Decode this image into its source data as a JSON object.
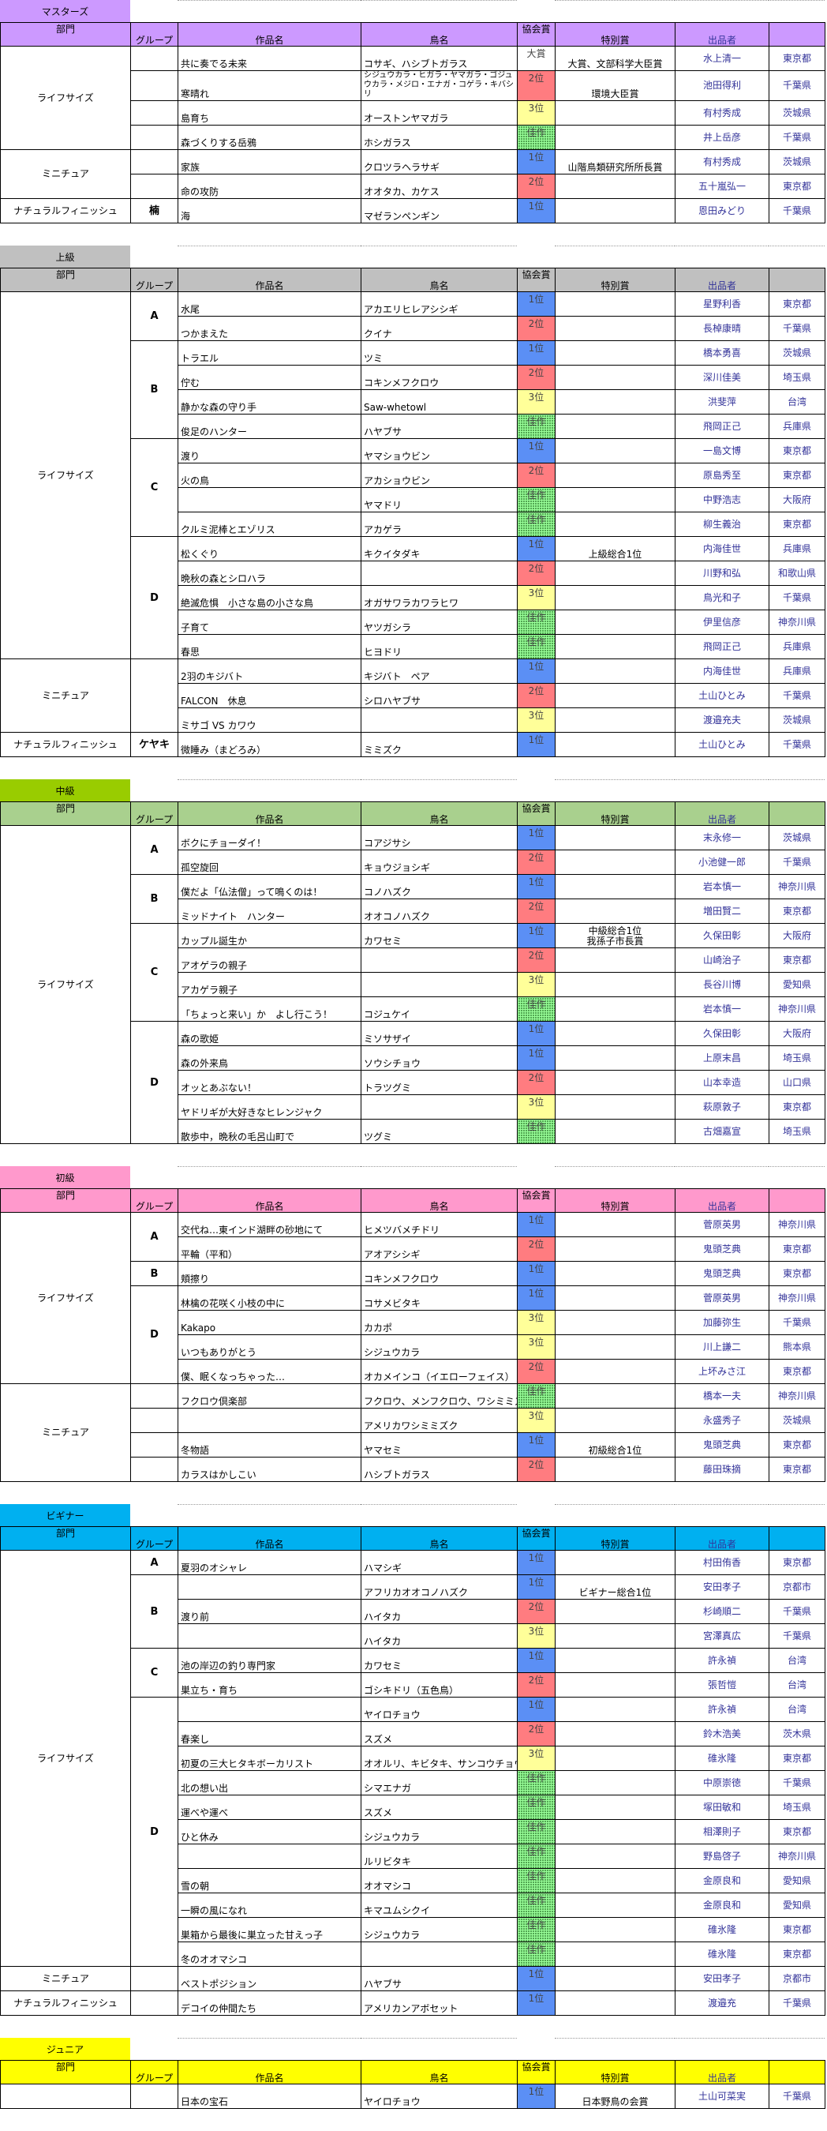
{
  "header": {
    "dept": "部門",
    "group": "グループ",
    "title": "作品名",
    "bird": "鳥名",
    "award": "協会賞",
    "special": "特別賞",
    "entrant": "出品者",
    "pref": ""
  },
  "award_colors": {
    "大賞": "#FFFFFF",
    "1位": "#5B8FF5",
    "2位": "#FF7C80",
    "3位": "#FFFF99",
    "佳作": "#99FF99"
  },
  "sections": [
    {
      "name": "マスターズ",
      "color": "#CC99FF",
      "header_color": "#CC99FF",
      "departments": [
        {
          "name": "ライフサイズ",
          "groups": [
            {
              "label": "",
              "rows": [
                [
                  "共に奏でる未来",
                  "コサギ、ハシブトガラス",
                  "大賞",
                  "大賞、文部科学大臣賞",
                  "水上清一",
                  "東京都"
                ]
              ]
            },
            {
              "label": "",
              "rows": [
                [
                  "寒晴れ",
                  "シジュウカラ・ヒガラ・ヤマガラ・ゴジュウカラ・メジロ・エナガ・コゲラ・キバシリ",
                  "2位",
                  "環境大臣賞",
                  "池田得利",
                  "千葉県"
                ]
              ]
            },
            {
              "label": "",
              "rows": [
                [
                  "島育ち",
                  "オーストンヤマガラ",
                  "3位",
                  "",
                  "有村秀成",
                  "茨城県"
                ]
              ]
            },
            {
              "label": "",
              "rows": [
                [
                  "森づくりする岳鴉",
                  "ホシガラス",
                  "佳作",
                  "",
                  "井上岳彦",
                  "千葉県"
                ]
              ]
            }
          ]
        },
        {
          "name": "ミニチュア",
          "groups": [
            {
              "label": "",
              "rows": [
                [
                  "家族",
                  "クロツラヘラサギ",
                  "1位",
                  "山階鳥類研究所所長賞",
                  "有村秀成",
                  "茨城県"
                ]
              ]
            },
            {
              "label": "",
              "rows": [
                [
                  "命の攻防",
                  "オオタカ、カケス",
                  "2位",
                  "",
                  "五十嵐弘一",
                  "東京都"
                ]
              ]
            }
          ]
        },
        {
          "name": "ナチュラルフィニッシュ",
          "groups": [
            {
              "label": "楠",
              "rows": [
                [
                  "海",
                  "マゼランペンギン",
                  "1位",
                  "",
                  "恩田みどり",
                  "千葉県"
                ]
              ]
            }
          ]
        }
      ]
    },
    {
      "name": "上級",
      "color": "#C0C0C0",
      "header_color": "#C0C0C0",
      "departments": [
        {
          "name": "ライフサイズ",
          "groups": [
            {
              "label": "A",
              "rows": [
                [
                  "水尾",
                  "アカエリヒレアシシギ",
                  "1位",
                  "",
                  "星野利香",
                  "東京都"
                ],
                [
                  "つかまえた",
                  "クイナ",
                  "2位",
                  "",
                  "長棹康晴",
                  "千葉県"
                ]
              ]
            },
            {
              "label": "B",
              "rows": [
                [
                  "トラエル",
                  "ツミ",
                  "1位",
                  "",
                  "橋本勇喜",
                  "茨城県"
                ],
                [
                  "佇む",
                  "コキンメフクロウ",
                  "2位",
                  "",
                  "深川佳美",
                  "埼玉県"
                ],
                [
                  "静かな森の守り手",
                  "Saw-whetowl",
                  "3位",
                  "",
                  "洪斐萍",
                  "台湾"
                ],
                [
                  "俊足のハンター",
                  "ハヤブサ",
                  "佳作",
                  "",
                  "飛岡正己",
                  "兵庫県"
                ]
              ]
            },
            {
              "label": "C",
              "rows": [
                [
                  "渡り",
                  "ヤマショウビン",
                  "1位",
                  "",
                  "一島文博",
                  "東京都"
                ],
                [
                  "火の鳥",
                  "アカショウビン",
                  "2位",
                  "",
                  "原島秀至",
                  "東京都"
                ],
                [
                  "",
                  "ヤマドリ",
                  "佳作",
                  "",
                  "中野浩志",
                  "大阪府"
                ],
                [
                  "クルミ泥棒とエゾリス",
                  "アカゲラ",
                  "佳作",
                  "",
                  "柳生義治",
                  "東京都"
                ]
              ]
            },
            {
              "label": "D",
              "rows": [
                [
                  "松くぐり",
                  "キクイタダキ",
                  "1位",
                  "上級総合1位",
                  "内海佳世",
                  "兵庫県"
                ],
                [
                  "晩秋の森とシロハラ",
                  "",
                  "2位",
                  "",
                  "川野和弘",
                  "和歌山県"
                ],
                [
                  "絶滅危惧　小さな島の小さな鳥",
                  "オガサワラカワラヒワ",
                  "3位",
                  "",
                  "鳥光和子",
                  "千葉県"
                ],
                [
                  "子育て",
                  "ヤツガシラ",
                  "佳作",
                  "",
                  "伊里信彦",
                  "神奈川県"
                ],
                [
                  "春思",
                  "ヒヨドリ",
                  "佳作",
                  "",
                  "飛岡正己",
                  "兵庫県"
                ]
              ]
            }
          ]
        },
        {
          "name": "ミニチュア",
          "groups": [
            {
              "label": "",
              "rows": [
                [
                  "2羽のキジバト",
                  "キジバト　ペア",
                  "1位",
                  "",
                  "内海佳世",
                  "兵庫県"
                ],
                [
                  "FALCON　休息",
                  "シロハヤブサ",
                  "2位",
                  "",
                  "土山ひとみ",
                  "千葉県"
                ],
                [
                  "ミサゴ VS カワウ",
                  "",
                  "3位",
                  "",
                  "渡邉充夫",
                  "茨城県"
                ]
              ]
            }
          ]
        },
        {
          "name": "ナチュラルフィニッシュ",
          "groups": [
            {
              "label": "ケヤキ",
              "rows": [
                [
                  "微睡み（まどろみ）",
                  "ミミズク",
                  "1位",
                  "",
                  "土山ひとみ",
                  "千葉県"
                ]
              ]
            }
          ]
        }
      ]
    },
    {
      "name": "中級",
      "color": "#99CC00",
      "header_color": "#A9D08E",
      "departments": [
        {
          "name": "ライフサイズ",
          "groups": [
            {
              "label": "A",
              "rows": [
                [
                  "ボクにチョーダイ！",
                  "コアジサシ",
                  "1位",
                  "",
                  "末永修一",
                  "茨城県"
                ],
                [
                  "孤空旋回",
                  "キョウジョシギ",
                  "2位",
                  "",
                  "小池健一郎",
                  "千葉県"
                ]
              ]
            },
            {
              "label": "B",
              "rows": [
                [
                  "僕だよ「仏法僧」って鳴くのは！",
                  "コノハズク",
                  "1位",
                  "",
                  "岩本慎一",
                  "神奈川県"
                ],
                [
                  "ミッドナイト　ハンター",
                  "オオコノハズク",
                  "2位",
                  "",
                  "増田賢二",
                  "東京都"
                ]
              ]
            },
            {
              "label": "C",
              "rows": [
                [
                  "カップル誕生か",
                  "カワセミ",
                  "1位",
                  "中級総合1位\n我孫子市長賞",
                  "久保田彰",
                  "大阪府"
                ],
                [
                  "アオゲラの親子",
                  "",
                  "2位",
                  "",
                  "山崎治子",
                  "東京都"
                ],
                [
                  "アカゲラ親子",
                  "",
                  "3位",
                  "",
                  "長谷川博",
                  "愛知県"
                ],
                [
                  "「ちょっと来い」か　よし行こう！",
                  "コジュケイ",
                  "佳作",
                  "",
                  "岩本慎一",
                  "神奈川県"
                ]
              ]
            },
            {
              "label": "D",
              "rows": [
                [
                  "森の歌姫",
                  "ミソサザイ",
                  "1位",
                  "",
                  "久保田彰",
                  "大阪府"
                ],
                [
                  "森の外来鳥",
                  "ソウシチョウ",
                  "1位",
                  "",
                  "上原末昌",
                  "埼玉県"
                ],
                [
                  "オッとあぶない！",
                  "トラツグミ",
                  "2位",
                  "",
                  "山本幸造",
                  "山口県"
                ],
                [
                  "ヤドリギが大好きなヒレンジャク",
                  "",
                  "3位",
                  "",
                  "萩原敦子",
                  "東京都"
                ],
                [
                  "散歩中，晩秋の毛呂山町で",
                  "ツグミ",
                  "佳作",
                  "",
                  "古畑嘉宣",
                  "埼玉県"
                ]
              ]
            }
          ]
        }
      ]
    },
    {
      "name": "初級",
      "color": "#FF99CC",
      "header_color": "#FF99CC",
      "departments": [
        {
          "name": "ライフサイズ",
          "groups": [
            {
              "label": "A",
              "rows": [
                [
                  "交代ね…東インド湖畔の砂地にて",
                  "ヒメツバメチドリ",
                  "1位",
                  "",
                  "菅原英男",
                  "神奈川県"
                ],
                [
                  "平輪（平和）",
                  "アオアシシギ",
                  "2位",
                  "",
                  "鬼頭芝典",
                  "東京都"
                ]
              ]
            },
            {
              "label": "B",
              "rows": [
                [
                  "頬擦り",
                  "コキンメフクロウ",
                  "1位",
                  "",
                  "鬼頭芝典",
                  "東京都"
                ]
              ]
            },
            {
              "label": "D",
              "rows": [
                [
                  "林檎の花咲く小枝の中に",
                  "コサメビタキ",
                  "1位",
                  "",
                  "菅原英男",
                  "神奈川県"
                ],
                [
                  "Kakapo",
                  "カカポ",
                  "3位",
                  "",
                  "加藤弥生",
                  "千葉県"
                ],
                [
                  "いつもありがとう",
                  "シジュウカラ",
                  "3位",
                  "",
                  "川上謙二",
                  "熊本県"
                ],
                [
                  "僕、眠くなっちゃった…",
                  "オカメインコ（イエローフェイス）",
                  "2位",
                  "",
                  "上坏みさ江",
                  "東京都"
                ]
              ]
            }
          ]
        },
        {
          "name": "ミニチュア",
          "groups": [
            {
              "label": "",
              "rows": [
                [
                  "フクロウ倶楽部",
                  "フクロウ、メンフクロウ、ワシミミズク",
                  "佳作",
                  "",
                  "橋本一夫",
                  "神奈川県"
                ]
              ]
            },
            {
              "label": "",
              "rows": [
                [
                  "",
                  "アメリカワシミミズク",
                  "3位",
                  "",
                  "永盛秀子",
                  "茨城県"
                ]
              ]
            },
            {
              "label": "",
              "rows": [
                [
                  "冬物語",
                  "ヤマセミ",
                  "1位",
                  "初級総合1位",
                  "鬼頭芝典",
                  "東京都"
                ]
              ]
            },
            {
              "label": "",
              "rows": [
                [
                  "カラスはかしこい",
                  "ハシブトガラス",
                  "2位",
                  "",
                  "藤田珠摘",
                  "東京都"
                ]
              ]
            }
          ]
        }
      ]
    },
    {
      "name": "ビギナー",
      "color": "#00B0F0",
      "header_color": "#00B0F0",
      "departments": [
        {
          "name": "ライフサイズ",
          "groups": [
            {
              "label": "A",
              "rows": [
                [
                  "夏羽のオシャレ",
                  "ハマシギ",
                  "1位",
                  "",
                  "村田侑香",
                  "東京都"
                ]
              ]
            },
            {
              "label": "B",
              "rows": [
                [
                  "",
                  "アフリカオオコノハズク",
                  "1位",
                  "ビギナー総合1位",
                  "安田孝子",
                  "京都市"
                ],
                [
                  "渡り前",
                  "ハイタカ",
                  "2位",
                  "",
                  "杉崎順二",
                  "千葉県"
                ],
                [
                  "",
                  "ハイタカ",
                  "3位",
                  "",
                  "宮澤真広",
                  "千葉県"
                ]
              ]
            },
            {
              "label": "C",
              "rows": [
                [
                  "池の岸辺の釣り専門家",
                  "カワセミ",
                  "1位",
                  "",
                  "許永禎",
                  "台湾"
                ],
                [
                  "巣立ち・育ち",
                  "ゴシキドリ（五色鳥）",
                  "2位",
                  "",
                  "張哲愷",
                  "台湾"
                ]
              ]
            },
            {
              "label": "D",
              "rows": [
                [
                  "",
                  "ヤイロチョウ",
                  "1位",
                  "",
                  "許永禎",
                  "台湾"
                ],
                [
                  "春楽し",
                  "スズメ",
                  "2位",
                  "",
                  "鈴木浩美",
                  "茨木県"
                ],
                [
                  "初夏の三大ヒタキボーカリスト",
                  "オオルリ、キビタキ、サンコウチョウ",
                  "3位",
                  "",
                  "碓氷隆",
                  "東京都"
                ],
                [
                  "北の想い出",
                  "シマエナガ",
                  "佳作",
                  "",
                  "中原崇徳",
                  "千葉県"
                ],
                [
                  "運べや運べ",
                  "スズメ",
                  "佳作",
                  "",
                  "塚田敏和",
                  "埼玉県"
                ],
                [
                  "ひと休み",
                  "シジュウカラ",
                  "佳作",
                  "",
                  "相澤則子",
                  "東京都"
                ],
                [
                  "",
                  "ルリビタキ",
                  "佳作",
                  "",
                  "野島啓子",
                  "神奈川県"
                ],
                [
                  "雪の朝",
                  "オオマシコ",
                  "佳作",
                  "",
                  "金原良和",
                  "愛知県"
                ],
                [
                  "一瞬の風になれ",
                  "キマユムシクイ",
                  "佳作",
                  "",
                  "金原良和",
                  "愛知県"
                ],
                [
                  "巣箱から最後に巣立った甘えっ子",
                  "シジュウカラ",
                  "佳作",
                  "",
                  "碓氷隆",
                  "東京都"
                ],
                [
                  "冬のオオマシコ",
                  "",
                  "佳作",
                  "",
                  "碓氷隆",
                  "東京都"
                ]
              ]
            }
          ]
        },
        {
          "name": "ミニチュア",
          "groups": [
            {
              "label": "",
              "rows": [
                [
                  "ベストポジション",
                  "ハヤブサ",
                  "1位",
                  "",
                  "安田孝子",
                  "京都市"
                ]
              ]
            }
          ]
        },
        {
          "name": "ナチュラルフィニッシュ",
          "groups": [
            {
              "label": "",
              "rows": [
                [
                  "デコイの仲間たち",
                  "アメリカンアボセット",
                  "1位",
                  "",
                  "渡邉充",
                  "千葉県"
                ]
              ]
            }
          ]
        }
      ]
    },
    {
      "name": "ジュニア",
      "color": "#FFFF00",
      "header_color": "#FFFF00",
      "departments": [
        {
          "name": "",
          "groups": [
            {
              "label": "",
              "rows": [
                [
                  "日本の宝石",
                  "ヤイロチョウ",
                  "1位",
                  "日本野鳥の会賞",
                  "土山可菜実",
                  "千葉県"
                ]
              ]
            }
          ]
        }
      ]
    }
  ]
}
